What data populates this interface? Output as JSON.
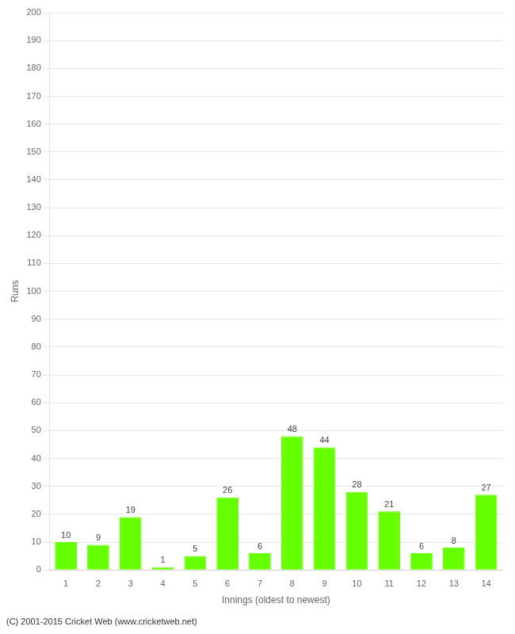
{
  "chart_data": {
    "type": "bar",
    "categories": [
      "1",
      "2",
      "3",
      "4",
      "5",
      "6",
      "7",
      "8",
      "9",
      "10",
      "11",
      "12",
      "13",
      "14"
    ],
    "values": [
      10,
      9,
      19,
      1,
      5,
      26,
      6,
      48,
      44,
      28,
      21,
      6,
      8,
      27
    ],
    "color": "#66ff00",
    "xlabel": "Innings (oldest to newest)",
    "ylabel": "Runs",
    "ylim": [
      0,
      200
    ],
    "yticks": [
      0,
      10,
      20,
      30,
      40,
      50,
      60,
      70,
      80,
      90,
      100,
      110,
      120,
      130,
      140,
      150,
      160,
      170,
      180,
      190,
      200
    ],
    "grid": true,
    "data_labels": true,
    "annotations": [
      "(C) 2001-2015 Cricket Web (www.cricketweb.net)"
    ]
  }
}
